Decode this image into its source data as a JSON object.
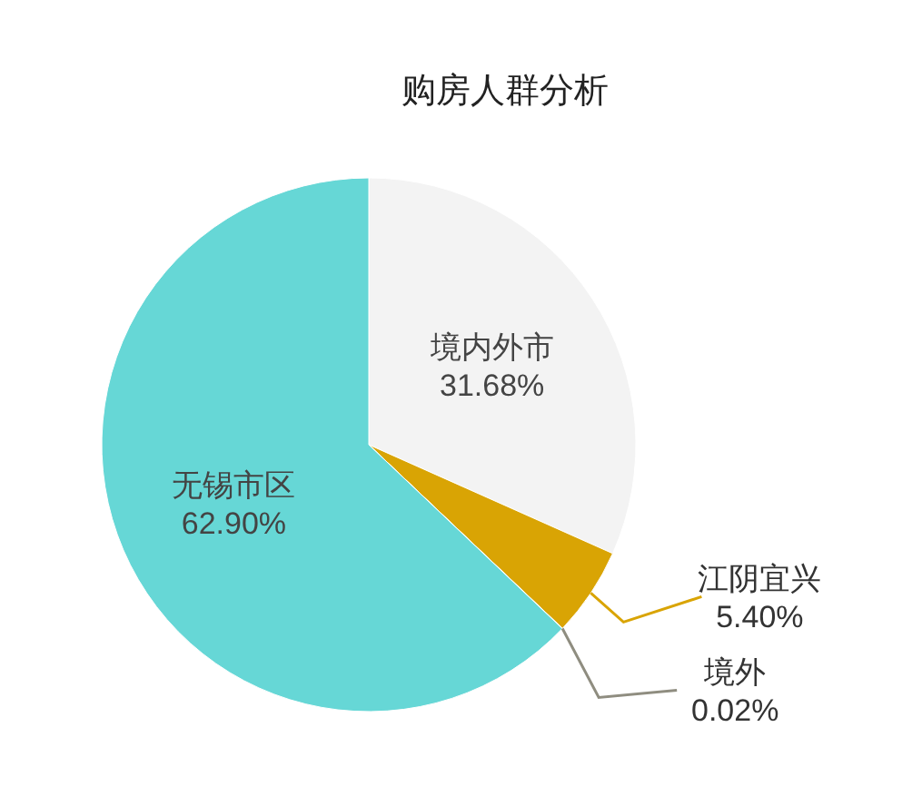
{
  "chart_data": {
    "type": "pie",
    "title": "购房人群分析",
    "categories": [
      "境内外市",
      "江阴宜兴",
      "境外",
      "无锡市区"
    ],
    "values": [
      31.68,
      5.4,
      0.02,
      62.9
    ],
    "value_labels": [
      "31.68%",
      "5.40%",
      "0.02%",
      "62.90%"
    ],
    "colors": [
      "#f3f3f3",
      "#d9a404",
      "#8f8d80",
      "#66d7d6"
    ]
  }
}
